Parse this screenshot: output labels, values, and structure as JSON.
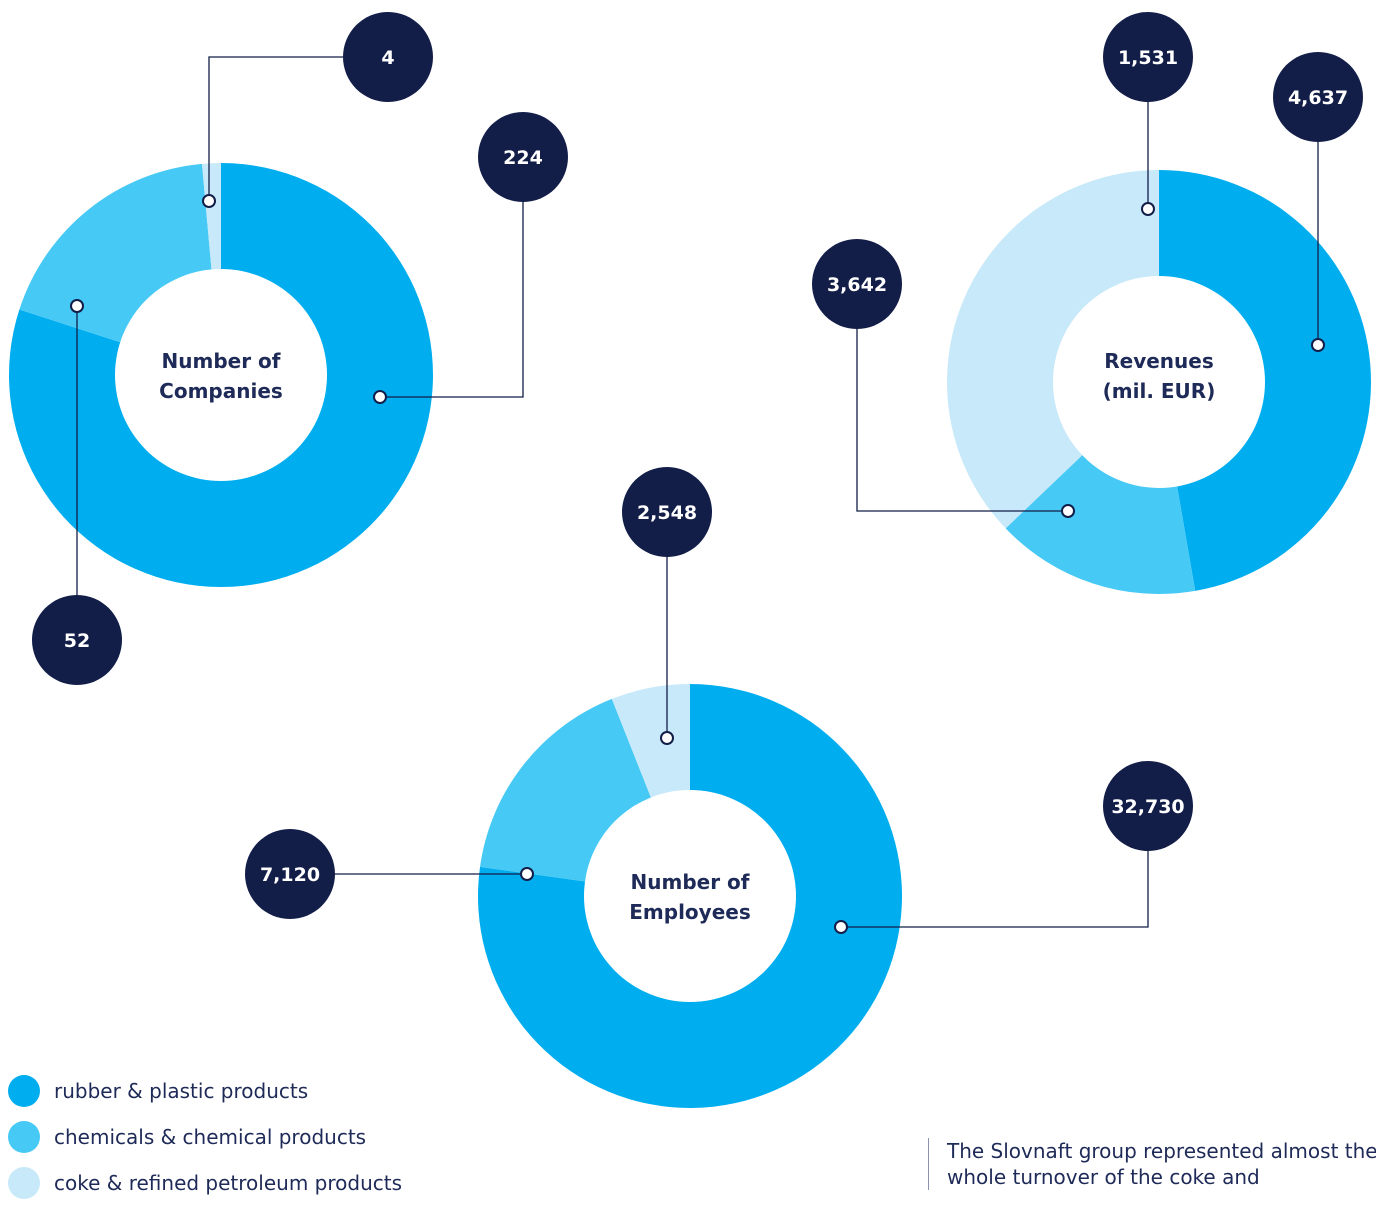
{
  "colors": {
    "rubber": "#00aeef",
    "chemicals": "#47c9f5",
    "coke": "#c7e9f9",
    "bubble": "#121d48",
    "text": "#1e2a57"
  },
  "chart_data": [
    {
      "type": "pie",
      "title": "Number of Companies",
      "title_lines": [
        "Number of",
        "Companies"
      ],
      "slices": [
        {
          "category": "rubber & plastic products",
          "value": 224
        },
        {
          "category": "chemicals & chemical products",
          "value": 52
        },
        {
          "category": "coke & refined petroleum products",
          "value": 4
        }
      ]
    },
    {
      "type": "pie",
      "title": "Revenues (mil. EUR)",
      "title_lines": [
        "Revenues",
        "(mil. EUR)"
      ],
      "slices": [
        {
          "category": "rubber & plastic products",
          "value": 4637
        },
        {
          "category": "chemicals & chemical products",
          "value": 1531
        },
        {
          "category": "coke & refined petroleum products",
          "value": 3642
        }
      ]
    },
    {
      "type": "pie",
      "title": "Number of Employees",
      "title_lines": [
        "Number of",
        "Employees"
      ],
      "slices": [
        {
          "category": "rubber & plastic products",
          "value": 32730
        },
        {
          "category": "chemicals & chemical products",
          "value": 7120
        },
        {
          "category": "coke & refined petroleum products",
          "value": 2548
        }
      ]
    }
  ],
  "legend": [
    {
      "label": "rubber & plastic products",
      "color": "#00aeef"
    },
    {
      "label": "chemicals & chemical products",
      "color": "#47c9f5"
    },
    {
      "label": "coke & refined petroleum products",
      "color": "#c7e9f9"
    }
  ],
  "labels": {
    "companies": [
      "224",
      "52",
      "4"
    ],
    "revenues": [
      "4,637",
      "1,531",
      "3,642"
    ],
    "employees": [
      "32,730",
      "7,120",
      "2,548"
    ]
  },
  "note": {
    "text": "The Slovnaft group represented almost the whole turnover of the coke and"
  }
}
